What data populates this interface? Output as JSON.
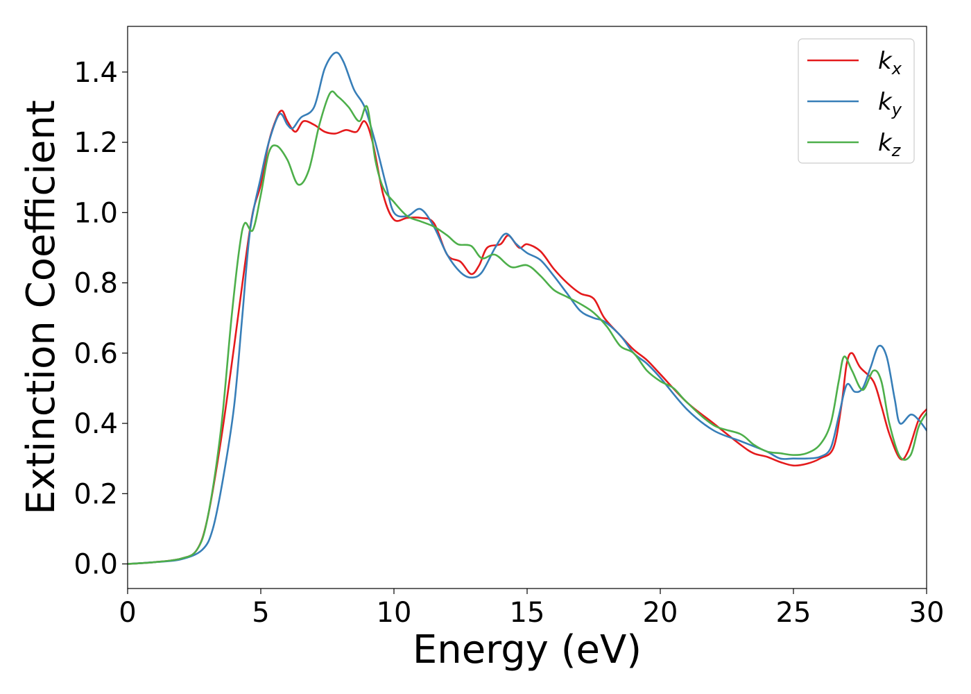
{
  "chart_data": {
    "type": "line",
    "xlabel": "Energy (eV)",
    "ylabel": "Extinction Coefficient",
    "xlim": [
      0,
      30
    ],
    "ylim": [
      -0.07,
      1.53
    ],
    "xticks": [
      "0",
      "5",
      "10",
      "15",
      "20",
      "25",
      "30"
    ],
    "yticks": [
      "0.0",
      "0.2",
      "0.4",
      "0.6",
      "0.8",
      "1.0",
      "1.2",
      "1.4"
    ],
    "grid": false,
    "legend_position": "top-right",
    "series": [
      {
        "name": "k",
        "subscript": "x",
        "color": "#e41a1c",
        "points": [
          [
            0,
            0
          ],
          [
            1,
            0.005
          ],
          [
            2,
            0.015
          ],
          [
            2.6,
            0.04
          ],
          [
            3,
            0.13
          ],
          [
            3.5,
            0.35
          ],
          [
            4,
            0.62
          ],
          [
            4.4,
            0.85
          ],
          [
            4.7,
            1.0
          ],
          [
            5,
            1.08
          ],
          [
            5.3,
            1.2
          ],
          [
            5.6,
            1.27
          ],
          [
            5.8,
            1.29
          ],
          [
            6,
            1.26
          ],
          [
            6.3,
            1.23
          ],
          [
            6.6,
            1.26
          ],
          [
            7,
            1.25
          ],
          [
            7.4,
            1.23
          ],
          [
            7.8,
            1.225
          ],
          [
            8.2,
            1.235
          ],
          [
            8.6,
            1.23
          ],
          [
            8.9,
            1.26
          ],
          [
            9.2,
            1.2
          ],
          [
            9.6,
            1.05
          ],
          [
            10,
            0.98
          ],
          [
            10.5,
            0.985
          ],
          [
            11,
            0.985
          ],
          [
            11.5,
            0.97
          ],
          [
            12,
            0.88
          ],
          [
            12.5,
            0.86
          ],
          [
            12.9,
            0.825
          ],
          [
            13.2,
            0.85
          ],
          [
            13.5,
            0.9
          ],
          [
            14,
            0.91
          ],
          [
            14.3,
            0.935
          ],
          [
            14.7,
            0.9
          ],
          [
            15,
            0.91
          ],
          [
            15.5,
            0.89
          ],
          [
            16,
            0.84
          ],
          [
            16.5,
            0.8
          ],
          [
            17,
            0.77
          ],
          [
            17.5,
            0.755
          ],
          [
            17.9,
            0.7
          ],
          [
            18.5,
            0.65
          ],
          [
            19,
            0.61
          ],
          [
            19.5,
            0.58
          ],
          [
            20,
            0.54
          ],
          [
            21,
            0.46
          ],
          [
            22,
            0.4
          ],
          [
            23,
            0.34
          ],
          [
            23.5,
            0.315
          ],
          [
            24,
            0.305
          ],
          [
            24.5,
            0.29
          ],
          [
            25,
            0.28
          ],
          [
            25.5,
            0.285
          ],
          [
            26,
            0.3
          ],
          [
            26.5,
            0.33
          ],
          [
            26.8,
            0.45
          ],
          [
            27,
            0.57
          ],
          [
            27.2,
            0.6
          ],
          [
            27.5,
            0.56
          ],
          [
            28,
            0.52
          ],
          [
            28.3,
            0.45
          ],
          [
            28.6,
            0.37
          ],
          [
            29,
            0.3
          ],
          [
            29.3,
            0.32
          ],
          [
            29.7,
            0.41
          ],
          [
            30,
            0.44
          ]
        ]
      },
      {
        "name": "k",
        "subscript": "y",
        "color": "#377eb8",
        "points": [
          [
            0,
            0
          ],
          [
            1,
            0.005
          ],
          [
            2,
            0.013
          ],
          [
            2.8,
            0.04
          ],
          [
            3.2,
            0.1
          ],
          [
            3.6,
            0.25
          ],
          [
            4,
            0.45
          ],
          [
            4.3,
            0.7
          ],
          [
            4.6,
            0.95
          ],
          [
            5,
            1.1
          ],
          [
            5.3,
            1.2
          ],
          [
            5.7,
            1.28
          ],
          [
            6,
            1.25
          ],
          [
            6.2,
            1.24
          ],
          [
            6.5,
            1.27
          ],
          [
            7,
            1.3
          ],
          [
            7.4,
            1.41
          ],
          [
            7.8,
            1.455
          ],
          [
            8.1,
            1.43
          ],
          [
            8.5,
            1.35
          ],
          [
            8.9,
            1.3
          ],
          [
            9.3,
            1.2
          ],
          [
            9.7,
            1.08
          ],
          [
            10,
            1.0
          ],
          [
            10.5,
            0.99
          ],
          [
            11,
            1.01
          ],
          [
            11.5,
            0.96
          ],
          [
            12,
            0.88
          ],
          [
            12.5,
            0.83
          ],
          [
            12.9,
            0.815
          ],
          [
            13.3,
            0.83
          ],
          [
            13.8,
            0.9
          ],
          [
            14.2,
            0.94
          ],
          [
            14.6,
            0.91
          ],
          [
            15,
            0.885
          ],
          [
            15.5,
            0.865
          ],
          [
            16,
            0.82
          ],
          [
            16.5,
            0.77
          ],
          [
            17,
            0.72
          ],
          [
            17.5,
            0.7
          ],
          [
            17.9,
            0.69
          ],
          [
            18.5,
            0.65
          ],
          [
            19,
            0.6
          ],
          [
            19.5,
            0.57
          ],
          [
            20,
            0.53
          ],
          [
            21,
            0.44
          ],
          [
            22,
            0.38
          ],
          [
            23,
            0.35
          ],
          [
            23.5,
            0.335
          ],
          [
            24,
            0.32
          ],
          [
            24.5,
            0.3
          ],
          [
            25,
            0.3
          ],
          [
            25.5,
            0.3
          ],
          [
            26,
            0.305
          ],
          [
            26.4,
            0.33
          ],
          [
            26.7,
            0.42
          ],
          [
            27,
            0.51
          ],
          [
            27.3,
            0.49
          ],
          [
            27.6,
            0.5
          ],
          [
            27.9,
            0.56
          ],
          [
            28.2,
            0.62
          ],
          [
            28.5,
            0.59
          ],
          [
            28.8,
            0.47
          ],
          [
            29,
            0.4
          ],
          [
            29.4,
            0.425
          ],
          [
            29.7,
            0.41
          ],
          [
            30,
            0.38
          ]
        ]
      },
      {
        "name": "k",
        "subscript": "z",
        "color": "#4daf4a",
        "points": [
          [
            0,
            0
          ],
          [
            1,
            0.005
          ],
          [
            2,
            0.015
          ],
          [
            2.6,
            0.04
          ],
          [
            3,
            0.13
          ],
          [
            3.5,
            0.38
          ],
          [
            3.9,
            0.7
          ],
          [
            4.2,
            0.9
          ],
          [
            4.4,
            0.97
          ],
          [
            4.7,
            0.95
          ],
          [
            5,
            1.05
          ],
          [
            5.3,
            1.17
          ],
          [
            5.6,
            1.19
          ],
          [
            6,
            1.15
          ],
          [
            6.4,
            1.08
          ],
          [
            6.8,
            1.12
          ],
          [
            7.2,
            1.25
          ],
          [
            7.6,
            1.34
          ],
          [
            7.9,
            1.33
          ],
          [
            8.3,
            1.3
          ],
          [
            8.7,
            1.26
          ],
          [
            9,
            1.3
          ],
          [
            9.3,
            1.15
          ],
          [
            9.6,
            1.07
          ],
          [
            10,
            1.03
          ],
          [
            10.5,
            0.99
          ],
          [
            11,
            0.975
          ],
          [
            11.5,
            0.96
          ],
          [
            12,
            0.935
          ],
          [
            12.4,
            0.91
          ],
          [
            12.9,
            0.905
          ],
          [
            13.3,
            0.87
          ],
          [
            13.8,
            0.88
          ],
          [
            14.4,
            0.845
          ],
          [
            15,
            0.85
          ],
          [
            15.5,
            0.82
          ],
          [
            16,
            0.78
          ],
          [
            16.5,
            0.76
          ],
          [
            17,
            0.74
          ],
          [
            17.5,
            0.715
          ],
          [
            18,
            0.675
          ],
          [
            18.5,
            0.62
          ],
          [
            19,
            0.6
          ],
          [
            19.5,
            0.55
          ],
          [
            20,
            0.52
          ],
          [
            20.5,
            0.5
          ],
          [
            21,
            0.46
          ],
          [
            22,
            0.395
          ],
          [
            23,
            0.37
          ],
          [
            23.5,
            0.34
          ],
          [
            24,
            0.32
          ],
          [
            24.5,
            0.315
          ],
          [
            25,
            0.31
          ],
          [
            25.5,
            0.315
          ],
          [
            26,
            0.34
          ],
          [
            26.4,
            0.4
          ],
          [
            26.7,
            0.52
          ],
          [
            26.9,
            0.59
          ],
          [
            27.2,
            0.55
          ],
          [
            27.6,
            0.495
          ],
          [
            28,
            0.55
          ],
          [
            28.3,
            0.52
          ],
          [
            28.6,
            0.4
          ],
          [
            29,
            0.305
          ],
          [
            29.4,
            0.31
          ],
          [
            29.7,
            0.39
          ],
          [
            30,
            0.43
          ]
        ]
      }
    ]
  }
}
